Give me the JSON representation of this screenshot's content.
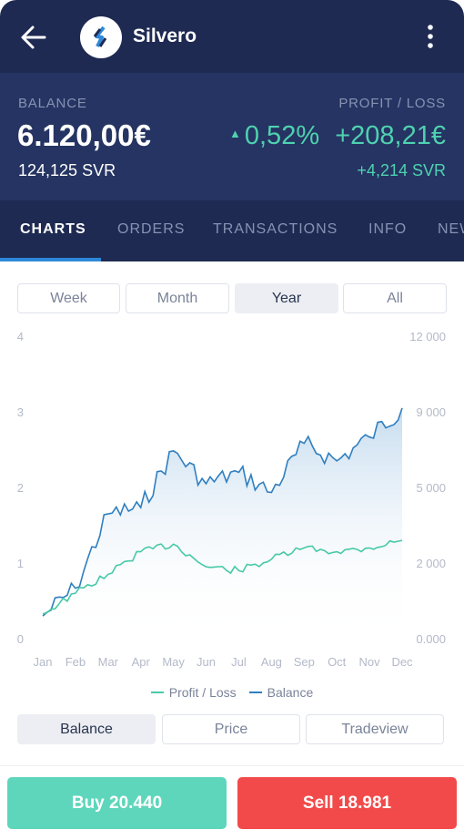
{
  "header": {
    "title": "Silvero",
    "back_icon": "arrow-left-icon",
    "logo_icon": "silvero-logo-icon",
    "menu_icon": "more-vertical-icon"
  },
  "summary": {
    "balance_label": "BALANCE",
    "balance_value": "6.120,00€",
    "balance_units": "124,125 SVR",
    "profit_label": "PROFIT / LOSS",
    "profit_percent": "0,52%",
    "profit_value": "+208,21€",
    "profit_units": "+4,214 SVR",
    "profit_color": "#4fd1b0"
  },
  "tabs": [
    {
      "label": "CHARTS",
      "active": true
    },
    {
      "label": "ORDERS",
      "active": false
    },
    {
      "label": "TRANSACTIONS",
      "active": false
    },
    {
      "label": "INFO",
      "active": false
    },
    {
      "label": "NEWS",
      "active": false
    }
  ],
  "range_options": [
    {
      "label": "Week",
      "active": false
    },
    {
      "label": "Month",
      "active": false
    },
    {
      "label": "Year",
      "active": true
    },
    {
      "label": "All",
      "active": false
    }
  ],
  "view_options": [
    {
      "label": "Balance",
      "active": true
    },
    {
      "label": "Price",
      "active": false
    },
    {
      "label": "Tradeview",
      "active": false
    }
  ],
  "actions": {
    "buy_label": "Buy 20.440",
    "sell_label": "Sell 18.981",
    "buy_color": "#5ed6bb",
    "sell_color": "#f24a4a"
  },
  "chart_data": {
    "type": "line",
    "categories": [
      "Jan",
      "Feb",
      "Mar",
      "Apr",
      "May",
      "Jun",
      "Jul",
      "Aug",
      "Sep",
      "Oct",
      "Nov",
      "Dec"
    ],
    "left_axis": {
      "ticks": [
        "0",
        "1",
        "2",
        "3",
        "4"
      ],
      "min": 0,
      "max": 4
    },
    "right_axis": {
      "ticks": [
        "0.000",
        "2 000",
        "5 000",
        "9 000",
        "12 000"
      ],
      "min": 0,
      "max": 12000
    },
    "legend_position": "bottom-center",
    "grid": false,
    "series": [
      {
        "name": "Balance",
        "axis": "right",
        "color": "#2f7fc0",
        "area_fill": true,
        "values": [
          900,
          2000,
          4950,
          5200,
          7450,
          6150,
          6600,
          5800,
          7750,
          7050,
          8000,
          9150
        ]
      },
      {
        "name": "Profit / Loss",
        "axis": "left",
        "color": "#47c9a8",
        "values": [
          0.33,
          0.6,
          0.85,
          1.15,
          1.25,
          0.95,
          0.9,
          1.05,
          1.2,
          1.15,
          1.2,
          1.3
        ]
      }
    ]
  }
}
